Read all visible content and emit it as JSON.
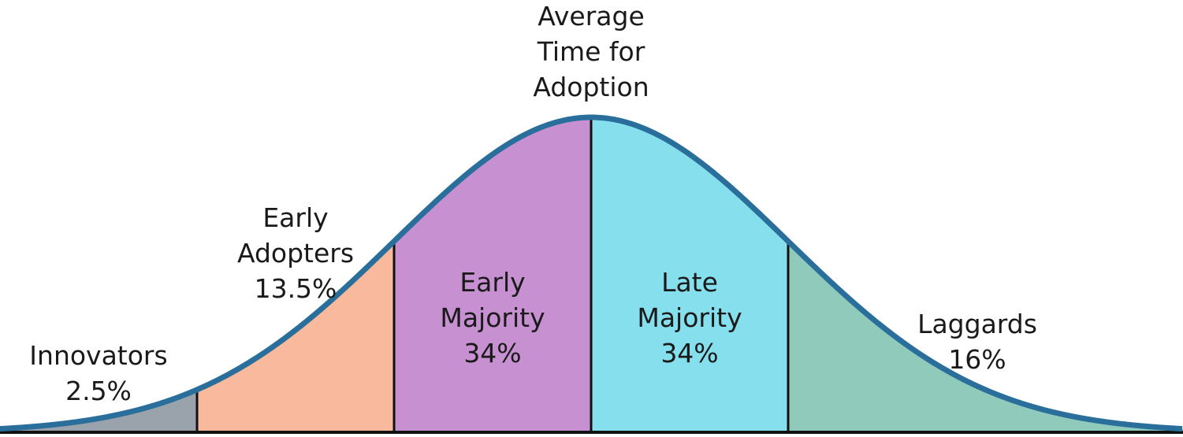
{
  "title_label": [
    "Average",
    "Time for",
    "Adoption"
  ],
  "segments": [
    {
      "id": "innovators",
      "lines": [
        "Innovators",
        "2.5%"
      ],
      "percent": 2.5,
      "color": "#9aa3ab"
    },
    {
      "id": "early-adopters",
      "lines": [
        "Early",
        "Adopters",
        "13.5%"
      ],
      "percent": 13.5,
      "color": "#f8b99c"
    },
    {
      "id": "early-majority",
      "lines": [
        "Early",
        "Majority",
        "34%"
      ],
      "percent": 34,
      "color": "#c690d1"
    },
    {
      "id": "late-majority",
      "lines": [
        "Late",
        "Majority",
        "34%"
      ],
      "percent": 34,
      "color": "#86dfec"
    },
    {
      "id": "laggards",
      "lines": [
        "Laggards",
        "16%"
      ],
      "percent": 16,
      "color": "#8fcabb"
    }
  ],
  "curve_color": "#2a6f9b",
  "divider_color": "#111111"
}
